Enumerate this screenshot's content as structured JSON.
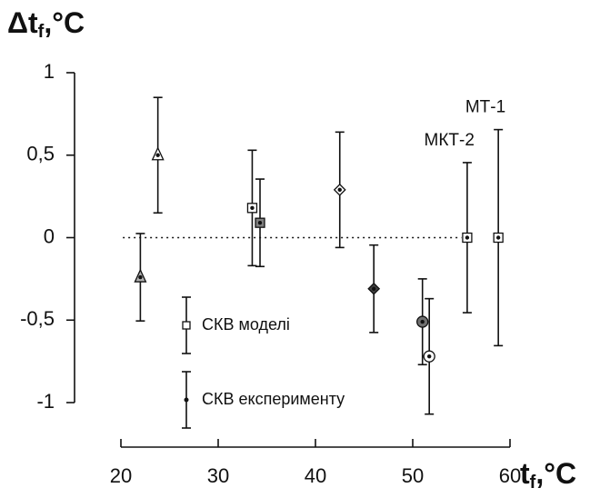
{
  "chart_data": {
    "type": "errorbar",
    "ylabel": [
      "Δt",
      "f",
      ",°C"
    ],
    "xlabel": [
      "t",
      "f",
      ",°C"
    ],
    "x": [
      22,
      23.8,
      33.5,
      34.3,
      42.5,
      46,
      51,
      51.7,
      55.6,
      58.8
    ],
    "values": [
      -0.24,
      0.5,
      0.18,
      0.09,
      0.29,
      -0.31,
      -0.51,
      -0.72,
      0,
      0
    ],
    "errors": [
      0.265,
      0.35,
      0.35,
      0.265,
      0.35,
      0.265,
      0.26,
      0.35,
      0.455,
      0.655
    ],
    "markers": [
      "triangle",
      "triangle",
      "square",
      "square",
      "diamond",
      "diamond",
      "circle",
      "circle",
      "square",
      "square"
    ],
    "marker_fills": [
      "#b0b0b0",
      "#ffffff",
      "#ffffff",
      "#808080",
      "#ffffff",
      "#404040",
      "#707070",
      "#ffffff",
      "#ffffff",
      "#ffffff"
    ],
    "point_labels": [
      null,
      null,
      null,
      null,
      null,
      null,
      null,
      null,
      "МКТ-2",
      "МТ-1"
    ],
    "legend": [
      {
        "label": "СКВ моделі",
        "marker": "square"
      },
      {
        "label": "СКВ експерименту",
        "marker": "dot"
      }
    ],
    "hline": 0,
    "xlim": [
      20,
      60
    ],
    "xticks": [
      20,
      30,
      40,
      50,
      60
    ],
    "ylim": [
      -1,
      1
    ],
    "yticks": [
      1,
      {
        "value": 0.5,
        "label": "0,5"
      },
      0,
      {
        "value": -0.5,
        "label": "-0,5"
      },
      -1
    ]
  }
}
